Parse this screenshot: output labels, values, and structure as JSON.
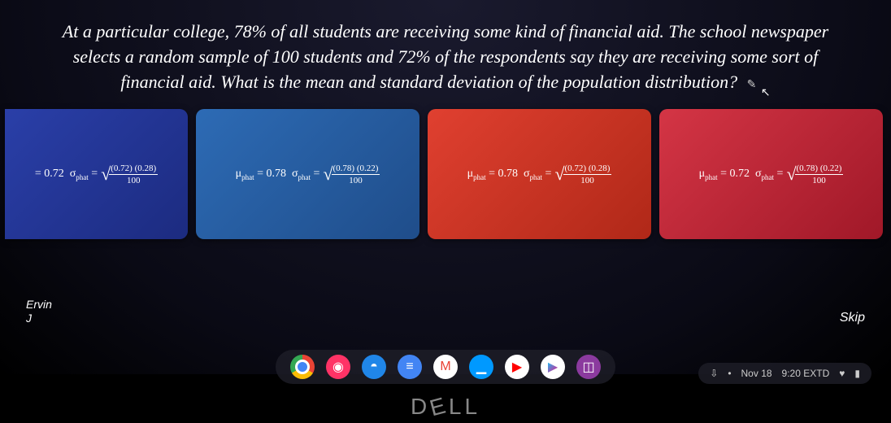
{
  "question": "At a particular college, 78% of all students are receiving some kind of financial aid. The school newspaper selects a random sample of 100 students and 72% of the respondents say they are receiving some sort of financial aid. What is the mean and standard deviation of the population distribution?",
  "options": [
    {
      "mu_value": "0.72",
      "numer": "(0.72) (0.28)",
      "denom": "100",
      "mu_label_prefix": "",
      "color": "#2a3fa8"
    },
    {
      "mu_value": "0.78",
      "numer": "(0.78) (0.22)",
      "denom": "100",
      "mu_label_prefix": "μ",
      "color": "#2d6bb5"
    },
    {
      "mu_value": "0.78",
      "numer": "(0.72) (0.28)",
      "denom": "100",
      "mu_label_prefix": "μ",
      "color": "#e04030"
    },
    {
      "mu_value": "0.72",
      "numer": "(0.78) (0.22)",
      "denom": "100",
      "mu_label_prefix": "μ",
      "color": "#d43545"
    }
  ],
  "player": {
    "name": "Ervin",
    "initial": "J"
  },
  "skip_label": "Skip",
  "systray": {
    "date": "Nov 18",
    "time": "9:20",
    "zone": "EXTD"
  },
  "brand": "DELL"
}
